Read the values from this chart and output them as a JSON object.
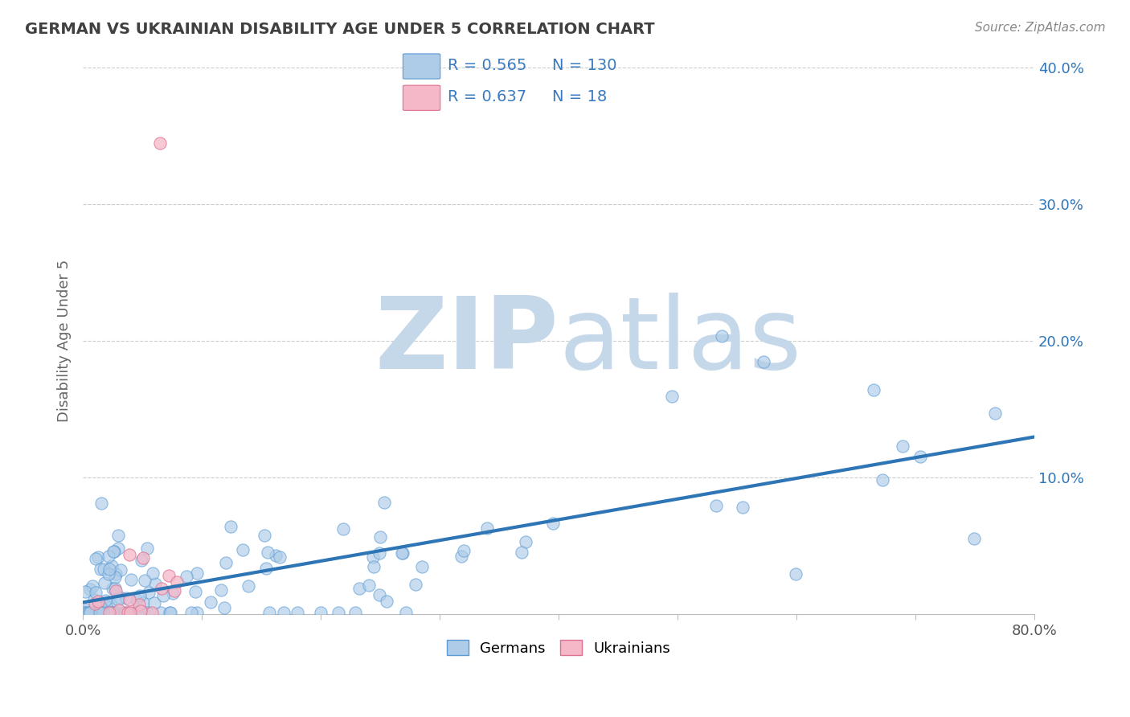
{
  "title": "GERMAN VS UKRAINIAN DISABILITY AGE UNDER 5 CORRELATION CHART",
  "source": "Source: ZipAtlas.com",
  "ylabel": "Disability Age Under 5",
  "xlim": [
    0.0,
    0.8
  ],
  "ylim": [
    0.0,
    0.4
  ],
  "yticks": [
    0.0,
    0.1,
    0.2,
    0.3,
    0.4
  ],
  "ytick_labels": [
    "",
    "10.0%",
    "20.0%",
    "30.0%",
    "40.0%"
  ],
  "german_R": 0.565,
  "german_N": 130,
  "ukrainian_R": 0.637,
  "ukrainian_N": 18,
  "german_color": "#aecce8",
  "german_edge_color": "#5b9bd5",
  "german_line_color": "#2e75b6",
  "ukrainian_color": "#f4b8c8",
  "ukrainian_edge_color": "#e07090",
  "ukrainian_line_color": "#d44070",
  "watermark_zip": "ZIP",
  "watermark_atlas": "atlas",
  "watermark_color": "#c5d8ea",
  "background_color": "#ffffff",
  "grid_color": "#cccccc",
  "title_color": "#404040",
  "axis_label_color": "#666666",
  "legend_text_color": "#404040",
  "legend_R_color": "#3a7abf",
  "source_color": "#888888"
}
